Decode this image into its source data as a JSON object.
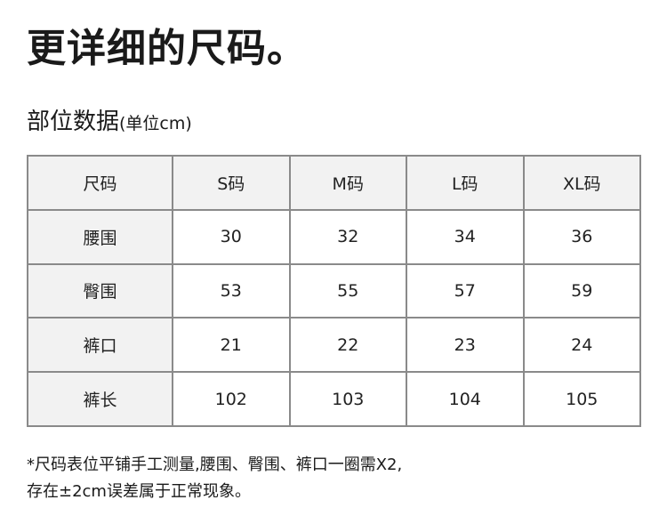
{
  "title": "更详细的尺码。",
  "subtitle": {
    "main": "部位数据",
    "unit": "(单位cm)"
  },
  "table": {
    "headers": [
      "尺码",
      "S码",
      "M码",
      "L码",
      "XL码"
    ],
    "rows": [
      {
        "label": "腰围",
        "values": [
          "30",
          "32",
          "34",
          "36"
        ]
      },
      {
        "label": "臀围",
        "values": [
          "53",
          "55",
          "57",
          "59"
        ]
      },
      {
        "label": "裤口",
        "values": [
          "21",
          "22",
          "23",
          "24"
        ]
      },
      {
        "label": "裤长",
        "values": [
          "102",
          "103",
          "104",
          "105"
        ]
      }
    ]
  },
  "note": {
    "line1": "*尺码表位平铺手工测量,腰围、臀围、裤口一圈需X2,",
    "line2": "存在±2cm误差属于正常现象。"
  }
}
